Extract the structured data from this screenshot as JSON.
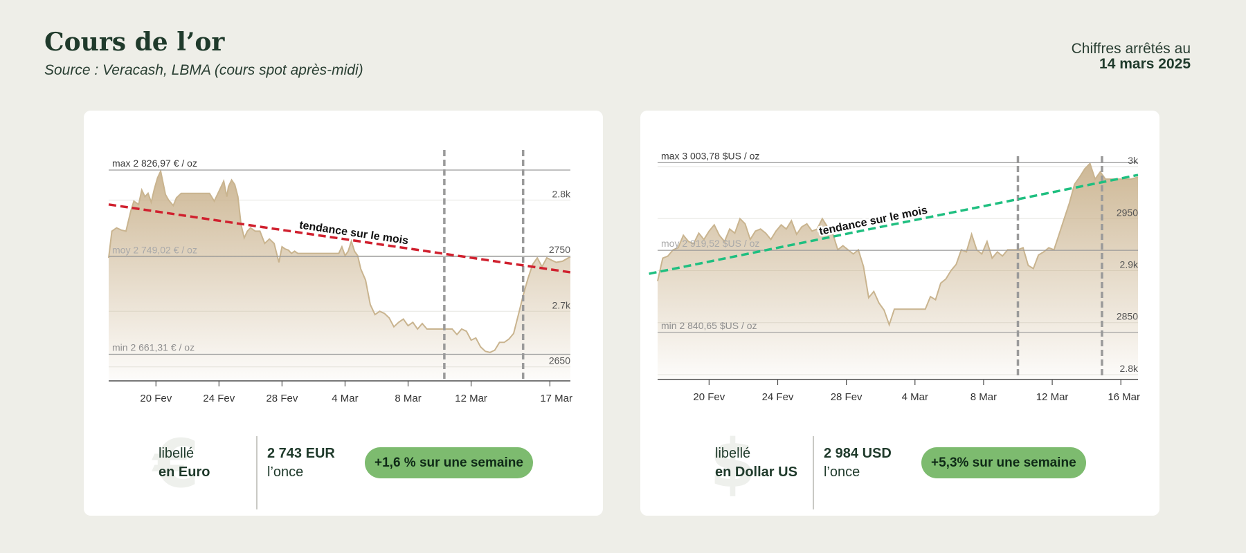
{
  "header": {
    "title": "Cours de l’or",
    "subtitle": "Source : Veracash, LBMA (cours spot après-midi)",
    "date_prefix": "Chiffres arrêtés au",
    "date": "14 mars 2025"
  },
  "colors": {
    "fill": "#c8b08a",
    "trend_down": "#d0202e",
    "trend_up": "#1fbf80",
    "pill": "#7dbb6f"
  },
  "panels": [
    {
      "currency_icon": "euro-sign-icon",
      "symbol": "€",
      "label_prefix": "libellé",
      "label": "en Euro",
      "price": "2 743 EUR",
      "unit": "l’once",
      "change": "+1,6 % sur une semaine"
    },
    {
      "currency_icon": "dollar-sign-icon",
      "symbol": "$",
      "label_prefix": "libellé",
      "label": "en Dollar US",
      "price": "2 984 USD",
      "unit": "l’once",
      "change": "+5,3% sur une semaine"
    }
  ],
  "chart_data": [
    {
      "type": "area",
      "trend_label": "tendance sur le mois",
      "max_label": "max 2 826,97 € / oz",
      "avg_label": "moy 2 749,02 € / oz",
      "min_label": "min 2 661,31 € / oz",
      "max": 2826.97,
      "avg": 2749.02,
      "min": 2661.31,
      "ylim": [
        2638,
        2845
      ],
      "yticks": [
        2650,
        2700,
        2750,
        2800
      ],
      "yticklabels": [
        "2650",
        "2.7k",
        "2750",
        "2.8k"
      ],
      "xlim": [
        0,
        29.3
      ],
      "xticks": [
        3,
        7,
        11,
        15,
        19,
        23,
        28
      ],
      "xticklabels": [
        "20 Fev",
        "24 Fev",
        "28 Fev",
        "4 Mar",
        "8 Mar",
        "12 Mar",
        "17 Mar"
      ],
      "vlines": [
        21.3,
        26.3
      ],
      "trend": [
        [
          0,
          2796
        ],
        [
          29.3,
          2735
        ]
      ],
      "x": [
        0,
        0.2,
        0.5,
        0.8,
        1.1,
        1.4,
        1.6,
        1.9,
        2.1,
        2.3,
        2.5,
        2.7,
        2.9,
        3.1,
        3.3,
        3.5,
        3.6,
        3.8,
        4.1,
        4.3,
        4.6,
        4.9,
        5.2,
        5.5,
        5.8,
        6.1,
        6.4,
        6.7,
        7.0,
        7.3,
        7.5,
        7.6,
        7.8,
        8.0,
        8.2,
        8.4,
        8.6,
        8.8,
        9.0,
        9.3,
        9.6,
        9.9,
        10.2,
        10.5,
        10.8,
        11.0,
        11.2,
        11.4,
        11.6,
        11.8,
        12.0,
        12.3,
        12.6,
        12.9,
        13.2,
        13.5,
        13.8,
        14.1,
        14.4,
        14.6,
        14.8,
        15.0,
        15.2,
        15.4,
        15.6,
        15.8,
        16.0,
        16.3,
        16.6,
        16.9,
        17.2,
        17.5,
        17.8,
        18.1,
        18.4,
        18.7,
        19.0,
        19.3,
        19.6,
        19.9,
        20.2,
        20.5,
        20.8,
        21.1,
        21.4,
        21.8,
        22.1,
        22.4,
        22.7,
        23.0,
        23.3,
        23.6,
        23.9,
        24.2,
        24.5,
        24.8,
        25.1,
        25.4,
        25.7,
        26.0,
        26.3,
        26.6,
        26.9,
        27.2,
        27.5,
        27.8,
        28.1,
        28.4,
        28.8,
        29.3
      ],
      "y": [
        2748,
        2772,
        2775,
        2773,
        2772,
        2790,
        2799,
        2796,
        2809,
        2803,
        2806,
        2798,
        2810,
        2820,
        2826,
        2812,
        2805,
        2800,
        2795,
        2802,
        2806,
        2806,
        2806,
        2806,
        2806,
        2806,
        2806,
        2799,
        2808,
        2817,
        2803,
        2812,
        2818,
        2814,
        2803,
        2778,
        2766,
        2772,
        2775,
        2772,
        2772,
        2761,
        2765,
        2761,
        2744,
        2758,
        2756,
        2755,
        2752,
        2754,
        2752,
        2752,
        2752,
        2752,
        2752,
        2752,
        2752,
        2752,
        2752,
        2752,
        2758,
        2750,
        2754,
        2763,
        2754,
        2750,
        2738,
        2728,
        2706,
        2697,
        2700,
        2698,
        2694,
        2686,
        2690,
        2693,
        2687,
        2690,
        2684,
        2689,
        2684,
        2684,
        2684,
        2684,
        2684,
        2684,
        2679,
        2684,
        2682,
        2674,
        2676,
        2668,
        2664,
        2663,
        2665,
        2672,
        2672,
        2675,
        2680,
        2697,
        2714,
        2729,
        2742,
        2748,
        2740,
        2748,
        2746,
        2744,
        2745,
        2749
      ]
    },
    {
      "type": "area",
      "trend_label": "tendance sur le mois",
      "max_label": "max 3 003,78 $US / oz",
      "avg_label": "moy 2 919,52 $US / oz",
      "min_label": "min 2 840,65 $US / oz",
      "max": 3003.78,
      "avg": 2919.52,
      "min": 2840.65,
      "ylim": [
        2796,
        3010
      ],
      "yticks": [
        2800,
        2850,
        2900,
        2950,
        3000
      ],
      "yticklabels": [
        "2.8k",
        "2850",
        "2.9k",
        "2950",
        "3k"
      ],
      "xlim": [
        0,
        28.0
      ],
      "xticks": [
        3,
        7,
        11,
        15,
        19,
        23,
        27
      ],
      "xticklabels": [
        "20 Fev",
        "24 Fev",
        "28 Fev",
        "4 Mar",
        "8 Mar",
        "12 Mar",
        "16 Mar"
      ],
      "vlines": [
        21.0,
        25.9
      ],
      "trend": [
        [
          -0.5,
          2897
        ],
        [
          28.0,
          2992
        ]
      ],
      "x": [
        0,
        0.3,
        0.6,
        0.9,
        1.2,
        1.5,
        1.8,
        2.1,
        2.4,
        2.7,
        3.0,
        3.3,
        3.6,
        3.9,
        4.2,
        4.5,
        4.8,
        5.1,
        5.4,
        5.7,
        6.0,
        6.3,
        6.6,
        6.9,
        7.2,
        7.5,
        7.8,
        8.1,
        8.4,
        8.7,
        9.0,
        9.3,
        9.6,
        9.9,
        10.2,
        10.5,
        10.8,
        11.1,
        11.4,
        11.7,
        12.0,
        12.3,
        12.6,
        12.9,
        13.2,
        13.5,
        13.8,
        14.1,
        14.4,
        14.7,
        15.0,
        15.3,
        15.6,
        15.9,
        16.2,
        16.5,
        16.8,
        17.1,
        17.4,
        17.7,
        18.0,
        18.3,
        18.6,
        18.9,
        19.2,
        19.5,
        19.8,
        20.1,
        20.4,
        20.7,
        21.0,
        21.3,
        21.6,
        21.9,
        22.2,
        22.5,
        22.8,
        23.1,
        23.4,
        23.7,
        24.0,
        24.3,
        24.6,
        24.9,
        25.2,
        25.5,
        25.8,
        26.1,
        26.4,
        26.7,
        27.0,
        27.3,
        27.6,
        28.0
      ],
      "y": [
        2890,
        2912,
        2914,
        2920,
        2922,
        2934,
        2928,
        2926,
        2936,
        2930,
        2938,
        2944,
        2934,
        2928,
        2940,
        2936,
        2950,
        2945,
        2930,
        2938,
        2940,
        2936,
        2930,
        2938,
        2944,
        2940,
        2948,
        2935,
        2942,
        2945,
        2938,
        2940,
        2950,
        2942,
        2936,
        2920,
        2924,
        2920,
        2916,
        2920,
        2904,
        2874,
        2880,
        2869,
        2862,
        2848,
        2863,
        2863,
        2863,
        2863,
        2863,
        2863,
        2863,
        2875,
        2872,
        2888,
        2892,
        2900,
        2906,
        2920,
        2918,
        2935,
        2920,
        2916,
        2928,
        2912,
        2918,
        2914,
        2920,
        2920,
        2920,
        2922,
        2905,
        2902,
        2915,
        2918,
        2922,
        2920,
        2935,
        2950,
        2965,
        2983,
        2990,
        2998,
        3003,
        2988,
        2995,
        2988,
        2988,
        2988,
        2988,
        2988,
        2988,
        2990
      ]
    }
  ]
}
